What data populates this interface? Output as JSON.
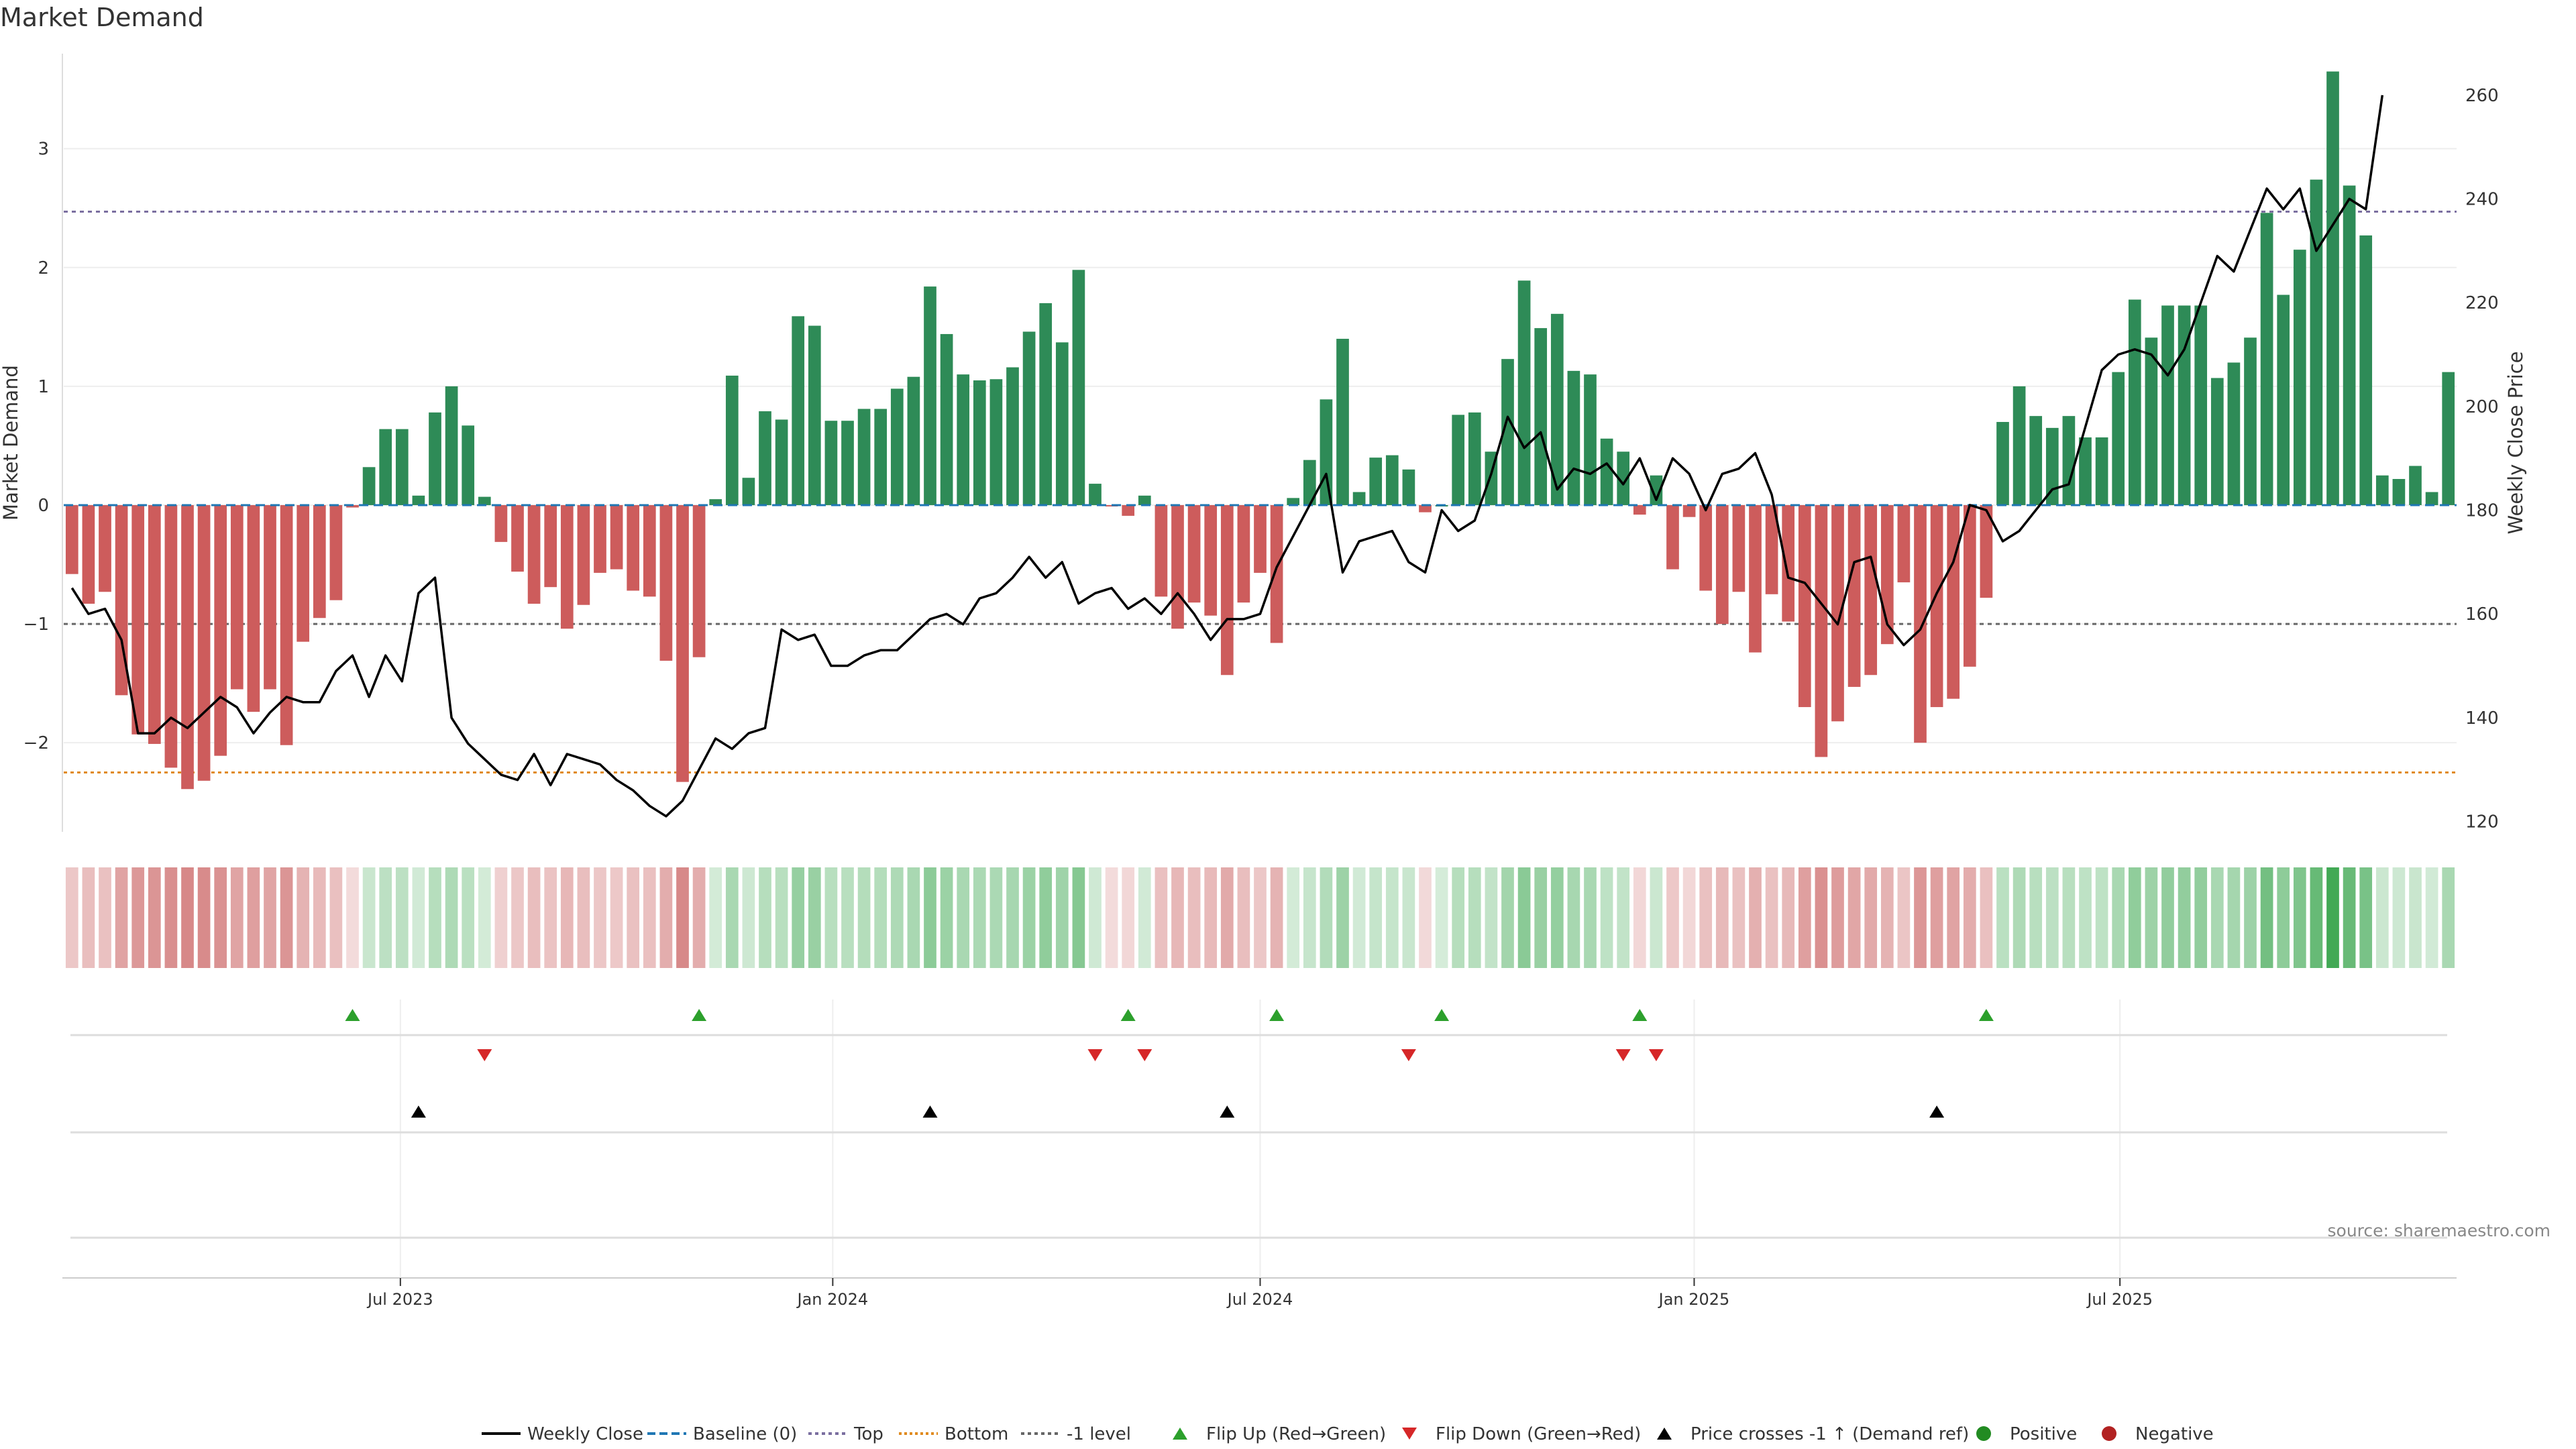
{
  "title": "Market Demand",
  "source": "source: sharemaestro.com",
  "colors": {
    "positive": "#2e8b57",
    "negative": "#cd5c5c",
    "price": "#000000",
    "baseline": "#1f77b4",
    "top": "#7b6fa0",
    "bottom": "#e08a1e",
    "minus1": "#666666",
    "flip_up": "#2ca02c",
    "flip_down": "#d62728",
    "cross": "#000000",
    "dot_pos": "#228b22",
    "dot_neg": "#b22222"
  },
  "chart_data": {
    "type": "bar",
    "ylabel": "Market Demand",
    "y2label": "Weekly Close Price",
    "ylim": [
      -2.75,
      3.8
    ],
    "y2lim": [
      118,
      268
    ],
    "yticks": [
      3,
      2,
      1,
      0,
      -1,
      -2
    ],
    "y2ticks": [
      260,
      240,
      220,
      200,
      180,
      160,
      140,
      120
    ],
    "levels": {
      "top": 2.47,
      "bottom": -2.25,
      "minus1": -1.0,
      "baseline": 0
    },
    "xtick_labels": [
      {
        "week": 20.4,
        "label": "Jul 2023"
      },
      {
        "week": 46.6,
        "label": "Jan 2024"
      },
      {
        "week": 72.5,
        "label": "Jul 2024"
      },
      {
        "week": 98.8,
        "label": "Jan 2025"
      },
      {
        "week": 124.6,
        "label": "Jul 2025"
      }
    ],
    "demand": [
      -0.58,
      -0.83,
      -0.73,
      -1.6,
      -1.93,
      -2.01,
      -2.21,
      -2.39,
      -2.32,
      -2.11,
      -1.55,
      -1.74,
      -1.55,
      -2.02,
      -1.15,
      -0.95,
      -0.8,
      -0.02,
      0.32,
      0.64,
      0.64,
      0.08,
      0.78,
      1.0,
      0.67,
      0.07,
      -0.31,
      -0.56,
      -0.83,
      -0.69,
      -1.04,
      -0.84,
      -0.57,
      -0.54,
      -0.72,
      -0.77,
      -1.31,
      -2.33,
      -1.28,
      0.05,
      1.09,
      0.23,
      0.79,
      0.72,
      1.59,
      1.51,
      0.71,
      0.71,
      0.81,
      0.81,
      0.98,
      1.08,
      1.84,
      1.44,
      1.1,
      1.05,
      1.06,
      1.16,
      1.46,
      1.7,
      1.37,
      1.98,
      0.18,
      -0.01,
      -0.09,
      0.08,
      -0.77,
      -1.04,
      -0.82,
      -0.93,
      -1.43,
      -0.82,
      -0.57,
      -1.16,
      0.06,
      0.38,
      0.89,
      1.4,
      0.11,
      0.4,
      0.42,
      0.3,
      -0.06,
      0.0,
      0.76,
      0.78,
      0.45,
      1.23,
      1.89,
      1.49,
      1.61,
      1.13,
      1.1,
      0.56,
      0.45,
      -0.08,
      0.25,
      -0.54,
      -0.1,
      -0.72,
      -1.0,
      -0.73,
      -1.24,
      -0.75,
      -0.98,
      -1.7,
      -2.12,
      -1.82,
      -1.53,
      -1.43,
      -1.17,
      -0.65,
      -2.0,
      -1.7,
      -1.63,
      -1.36,
      -0.78,
      0.7,
      1.0,
      0.75,
      0.65,
      0.75,
      0.57,
      0.57,
      1.12,
      1.73,
      1.41,
      1.68,
      1.68,
      1.68,
      1.07,
      1.2,
      1.41,
      2.46,
      1.77,
      2.15,
      2.74,
      3.65,
      2.69,
      2.27,
      0.25,
      0.22,
      0.33,
      0.11,
      1.12
    ],
    "price": [
      165,
      160,
      161,
      155,
      137,
      137,
      140,
      138,
      141,
      144,
      142,
      137,
      141,
      144,
      143,
      143,
      149,
      152,
      144,
      152,
      147,
      164,
      167,
      140,
      135,
      132,
      129,
      128,
      133,
      127,
      133,
      132,
      131,
      128,
      126,
      123,
      121,
      124,
      130,
      136,
      134,
      137,
      138,
      157,
      155,
      156,
      150,
      150,
      152,
      153,
      153,
      156,
      159,
      160,
      158,
      163,
      164,
      167,
      171,
      167,
      170,
      162,
      164,
      165,
      161,
      163,
      160,
      164,
      160,
      155,
      159,
      159,
      160,
      169,
      175,
      181,
      187,
      168,
      174,
      175,
      176,
      170,
      168,
      180,
      176,
      178,
      187,
      198,
      192,
      195,
      184,
      188,
      187,
      189,
      185,
      190,
      182,
      190,
      187,
      180,
      187,
      188,
      191,
      183,
      167,
      166,
      162,
      158,
      170,
      171,
      158,
      154,
      157,
      164,
      170,
      181,
      180,
      174,
      176,
      180,
      184,
      185,
      196,
      207,
      210,
      211,
      210,
      206,
      211,
      220,
      229,
      226,
      234,
      242,
      238,
      242,
      230,
      235,
      240,
      238,
      260
    ],
    "flip_up_weeks": [
      17,
      38,
      64,
      73,
      83,
      95,
      116
    ],
    "flip_down_weeks": [
      25,
      62,
      65,
      81,
      94,
      96
    ],
    "cross_weeks": [
      21,
      52,
      70,
      113
    ],
    "legend": [
      "Weekly Close",
      "Baseline (0)",
      "Top",
      "Bottom",
      "-1 level",
      "Flip Up (Red→Green)",
      "Flip Down (Green→Red)",
      "Price crosses -1 ↑ (Demand ref)",
      "Positive",
      "Negative"
    ]
  }
}
